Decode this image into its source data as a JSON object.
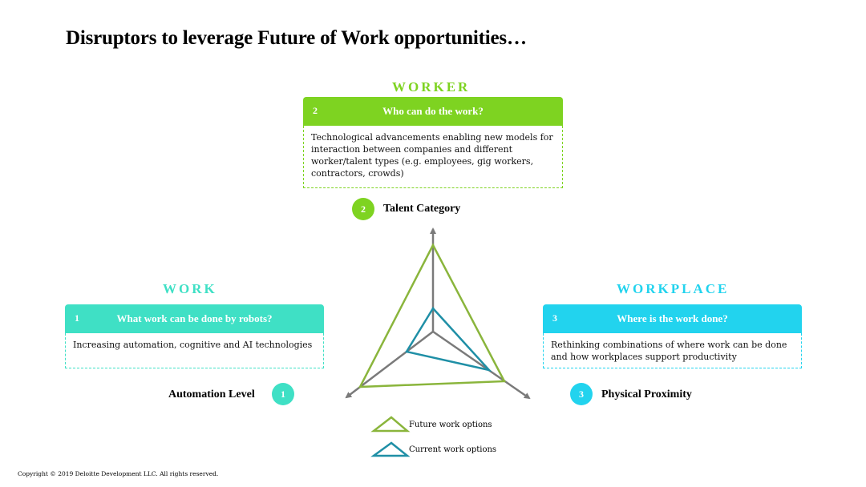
{
  "title": "Disruptors to leverage Future of Work opportunities…",
  "colors": {
    "worker": "#7ed321",
    "work": "#3fe0c5",
    "workplace": "#22d3ee",
    "future_triangle": "#8ab53c",
    "current_triangle": "#1f8fa6",
    "axis": "#7a7a7a"
  },
  "worker": {
    "heading": "WORKER",
    "number": "2",
    "question": "Who can do the work?",
    "description": "Technological advancements enabling new models for interaction between companies and different worker/talent types (e.g. employees, gig workers, contractors, crowds)"
  },
  "work": {
    "heading": "WORK",
    "number": "1",
    "question": "What work can be done by robots?",
    "description": "Increasing automation, cognitive and AI technologies"
  },
  "workplace": {
    "heading": "WORKPLACE",
    "number": "3",
    "question": "Where is the work done?",
    "description": "Rethinking combinations of where work can be done and how workplaces support productivity"
  },
  "axes": {
    "talent": {
      "number": "2",
      "label": "Talent Category"
    },
    "automation": {
      "number": "1",
      "label": "Automation Level"
    },
    "proximity": {
      "number": "3",
      "label": "Physical Proximity"
    }
  },
  "legend": {
    "future": "Future work options",
    "current": "Current work options"
  },
  "copyright": "Copyright © 2019 Deloitte Development LLC. All rights reserved."
}
